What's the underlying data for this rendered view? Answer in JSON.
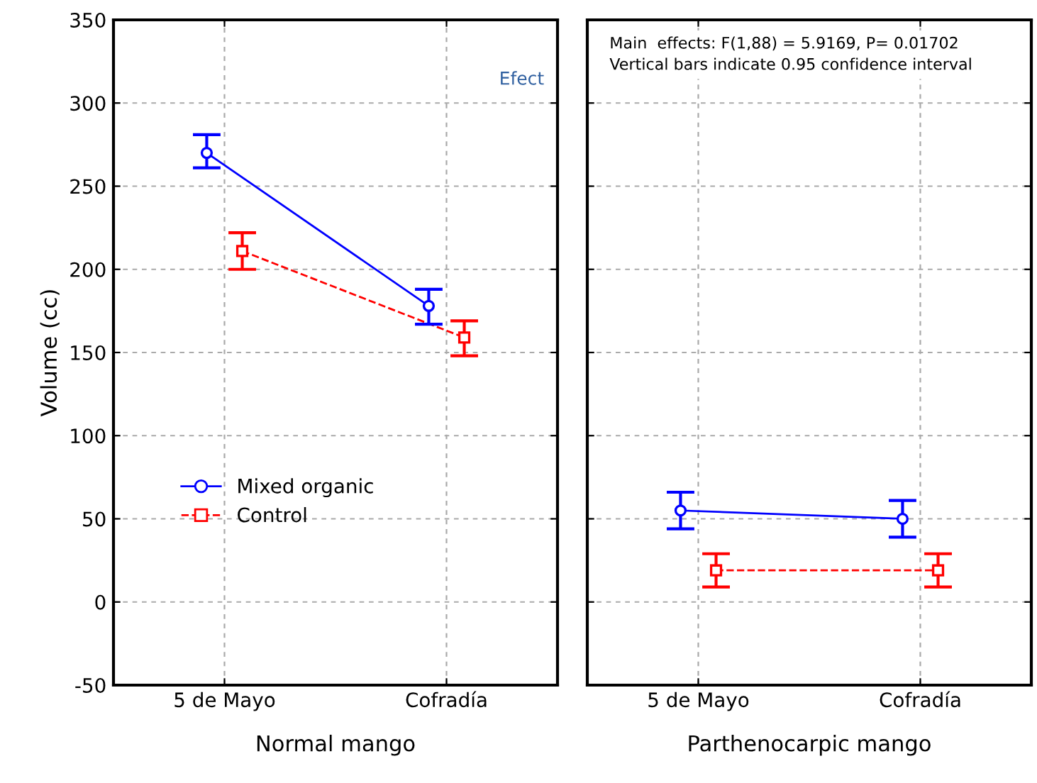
{
  "chart_data": [
    {
      "type": "line",
      "categories": [
        "5 de Mayo",
        "Cofradía"
      ],
      "xlabel": "Normal mango",
      "ylabel": "Volume (cc)",
      "ylim": [
        -50,
        350
      ],
      "yticks": [
        -50,
        0,
        50,
        100,
        150,
        200,
        250,
        300,
        350
      ],
      "grid": true,
      "legend": "center",
      "annotations": [
        "Efect"
      ],
      "series": [
        {
          "name": "Mixed organic",
          "color": "#0000ff",
          "marker": "circle",
          "line_style": "solid",
          "values": [
            270,
            178
          ],
          "errors": [
            [
              261,
              281
            ],
            [
              167,
              188
            ]
          ]
        },
        {
          "name": "Control",
          "color": "#ff0000",
          "marker": "square",
          "line_style": "dashed",
          "values": [
            211,
            159
          ],
          "errors": [
            [
              200,
              222
            ],
            [
              148,
              169
            ]
          ]
        }
      ]
    },
    {
      "type": "line",
      "categories": [
        "5 de Mayo",
        "Cofradía"
      ],
      "xlabel": "Parthenocarpic mango",
      "ylim": [
        -50,
        350
      ],
      "grid": true,
      "tick_labels": "x",
      "annotations": [
        "Main  effects: F(1,88) = 5.9169, P= 0.01702\nVertical bars indicate 0.95 confidence interval"
      ],
      "series": [
        {
          "color": "#0000ff",
          "marker": "circle",
          "line_style": "solid",
          "values": [
            55,
            50
          ],
          "errors": [
            [
              44,
              66
            ],
            [
              39,
              61
            ]
          ]
        },
        {
          "color": "#ff0000",
          "marker": "square",
          "line_style": "dashed",
          "values": [
            19,
            19
          ],
          "errors": [
            [
              9,
              29
            ],
            [
              9,
              29
            ]
          ]
        }
      ]
    }
  ]
}
